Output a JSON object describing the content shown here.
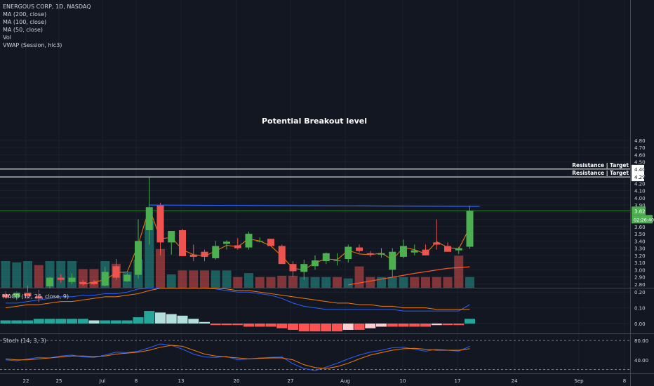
{
  "legend": {
    "symbol": "ENERGOUS CORP, 1D, NASDAQ",
    "indicators": [
      "MA (200, close)",
      "MA (100, close)",
      "MA (50, close)",
      "Vol",
      "VWAP (Session, hlc3)"
    ]
  },
  "annotations": {
    "breakout_label": "Potential Breakout level",
    "resistance_labels": [
      "Resistance | Target",
      "Resistance | Target"
    ],
    "last_price": "3.82",
    "countdown": "02:26:40"
  },
  "colors": {
    "background": "#131722",
    "up": "#4caf50",
    "down": "#ef5350",
    "blue": "#2962ff",
    "orange": "#f57c00",
    "grid": "#1e222d",
    "text": "#d1d4dc"
  },
  "chart_data": [
    {
      "type": "candlestick",
      "title": "ENERGOUS CORP, 1D, NASDAQ",
      "ylim": [
        2.7,
        4.85
      ],
      "y_ticks": [
        "4.80",
        "4.70",
        "4.60",
        "4.50",
        "4.40",
        "4.30",
        "4.20",
        "4.10",
        "4.00",
        "3.90",
        "3.80",
        "3.70",
        "3.60",
        "3.50",
        "3.40",
        "3.30",
        "3.20",
        "3.10",
        "3.00",
        "2.90",
        "2.80"
      ],
      "x_ticks": [
        "22",
        "25",
        "Jul",
        "8",
        "13",
        "20",
        "27",
        "Aug",
        "10",
        "17",
        "24",
        "Sep",
        "8"
      ],
      "candles": [
        {
          "o": 2.66,
          "h": 2.7,
          "l": 2.6,
          "c": 2.62
        },
        {
          "o": 2.62,
          "h": 2.7,
          "l": 2.58,
          "c": 2.68
        },
        {
          "o": 2.68,
          "h": 2.78,
          "l": 2.6,
          "c": 2.63
        },
        {
          "o": 2.63,
          "h": 2.72,
          "l": 2.55,
          "c": 2.6
        },
        {
          "o": 2.77,
          "h": 2.9,
          "l": 2.74,
          "c": 2.89
        },
        {
          "o": 2.89,
          "h": 2.94,
          "l": 2.82,
          "c": 2.86
        },
        {
          "o": 2.83,
          "h": 2.95,
          "l": 2.8,
          "c": 2.89
        },
        {
          "o": 2.83,
          "h": 2.86,
          "l": 2.78,
          "c": 2.8
        },
        {
          "o": 2.83,
          "h": 2.86,
          "l": 2.79,
          "c": 2.8
        },
        {
          "o": 2.78,
          "h": 3.04,
          "l": 2.77,
          "c": 2.97
        },
        {
          "o": 3.05,
          "h": 3.15,
          "l": 2.86,
          "c": 2.89
        },
        {
          "o": 2.84,
          "h": 2.95,
          "l": 2.83,
          "c": 2.93
        },
        {
          "o": 2.93,
          "h": 3.7,
          "l": 2.88,
          "c": 3.4
        },
        {
          "o": 3.55,
          "h": 4.28,
          "l": 3.35,
          "c": 3.87
        },
        {
          "o": 3.9,
          "h": 3.93,
          "l": 3.2,
          "c": 3.38
        },
        {
          "o": 3.38,
          "h": 3.54,
          "l": 3.21,
          "c": 3.54
        },
        {
          "o": 3.55,
          "h": 3.57,
          "l": 3.2,
          "c": 3.19
        },
        {
          "o": 3.21,
          "h": 3.35,
          "l": 3.12,
          "c": 3.18
        },
        {
          "o": 3.25,
          "h": 3.28,
          "l": 3.12,
          "c": 3.18
        },
        {
          "o": 3.16,
          "h": 3.4,
          "l": 3.14,
          "c": 3.33
        },
        {
          "o": 3.36,
          "h": 3.41,
          "l": 3.28,
          "c": 3.39
        },
        {
          "o": 3.34,
          "h": 3.44,
          "l": 3.28,
          "c": 3.3
        },
        {
          "o": 3.31,
          "h": 3.53,
          "l": 3.28,
          "c": 3.5
        },
        {
          "o": 3.4,
          "h": 3.45,
          "l": 3.38,
          "c": 3.4
        },
        {
          "o": 3.43,
          "h": 3.42,
          "l": 3.33,
          "c": 3.33
        },
        {
          "o": 3.33,
          "h": 3.35,
          "l": 3.08,
          "c": 3.08
        },
        {
          "o": 3.08,
          "h": 3.12,
          "l": 2.9,
          "c": 2.98
        },
        {
          "o": 2.97,
          "h": 3.14,
          "l": 2.86,
          "c": 3.08
        },
        {
          "o": 3.05,
          "h": 3.2,
          "l": 3.0,
          "c": 3.13
        },
        {
          "o": 3.12,
          "h": 3.24,
          "l": 3.08,
          "c": 3.23
        },
        {
          "o": 3.12,
          "h": 3.23,
          "l": 3.06,
          "c": 3.13
        },
        {
          "o": 3.15,
          "h": 3.35,
          "l": 3.1,
          "c": 3.32
        },
        {
          "o": 3.31,
          "h": 3.35,
          "l": 3.24,
          "c": 3.26
        },
        {
          "o": 3.23,
          "h": 3.26,
          "l": 3.18,
          "c": 3.21
        },
        {
          "o": 3.21,
          "h": 3.3,
          "l": 3.17,
          "c": 3.23
        },
        {
          "o": 3.0,
          "h": 3.3,
          "l": 2.9,
          "c": 3.25
        },
        {
          "o": 3.18,
          "h": 3.42,
          "l": 3.16,
          "c": 3.33
        },
        {
          "o": 3.24,
          "h": 3.35,
          "l": 3.2,
          "c": 3.27
        },
        {
          "o": 3.28,
          "h": 3.35,
          "l": 3.2,
          "c": 3.2
        },
        {
          "o": 3.38,
          "h": 3.7,
          "l": 3.28,
          "c": 3.35
        },
        {
          "o": 3.33,
          "h": 3.38,
          "l": 3.27,
          "c": 3.25
        },
        {
          "o": 3.27,
          "h": 3.32,
          "l": 3.22,
          "c": 3.3
        },
        {
          "o": 3.32,
          "h": 3.89,
          "l": 3.29,
          "c": 3.82
        }
      ],
      "vwap_line": [
        [
          7,
          2.8
        ],
        [
          8,
          2.83
        ],
        [
          9,
          2.86
        ],
        [
          10,
          2.96
        ],
        [
          11,
          2.97
        ],
        [
          12,
          3.35
        ],
        [
          13,
          3.86
        ],
        [
          14,
          3.43
        ],
        [
          15,
          3.45
        ],
        [
          16,
          3.28
        ],
        [
          17,
          3.21
        ],
        [
          18,
          3.19
        ],
        [
          19,
          3.26
        ],
        [
          20,
          3.34
        ],
        [
          21,
          3.32
        ],
        [
          22,
          3.43
        ],
        [
          23,
          3.4
        ],
        [
          24,
          3.33
        ],
        [
          25,
          3.19
        ],
        [
          26,
          3.02
        ],
        [
          27,
          3.0
        ],
        [
          28,
          3.1
        ],
        [
          29,
          3.15
        ],
        [
          30,
          3.14
        ],
        [
          31,
          3.27
        ],
        [
          32,
          3.22
        ],
        [
          33,
          3.21
        ],
        [
          34,
          3.23
        ],
        [
          35,
          3.14
        ],
        [
          36,
          3.31
        ],
        [
          37,
          3.28
        ],
        [
          38,
          3.22
        ],
        [
          39,
          3.39
        ],
        [
          40,
          3.31
        ],
        [
          41,
          3.29
        ],
        [
          42,
          3.59
        ]
      ],
      "ma_line": [
        [
          31,
          2.79
        ],
        [
          34,
          2.87
        ],
        [
          37,
          2.95
        ],
        [
          40,
          3.02
        ],
        [
          42,
          3.04
        ]
      ],
      "breakout_level": {
        "from": 13,
        "to": 42,
        "y_start": 3.9,
        "y_end": 3.88
      },
      "horizontal_levels": [
        4.4,
        4.29
      ],
      "last_price_line": 3.82
    },
    {
      "type": "bar",
      "title": "Vol",
      "values": [
        20,
        19,
        20,
        17,
        20,
        20,
        20,
        14,
        14,
        20,
        18,
        12,
        21,
        50,
        29,
        10,
        13,
        13,
        13,
        13,
        13,
        8,
        11,
        8,
        8,
        9,
        9,
        8,
        8,
        8,
        8,
        7,
        16,
        8,
        8,
        8,
        8,
        8,
        8,
        8,
        8,
        24,
        8
      ],
      "directions": [
        "up",
        "up",
        "up",
        "down",
        "up",
        "up",
        "up",
        "down",
        "down",
        "up",
        "down",
        "up",
        "up",
        "up",
        "down",
        "up",
        "down",
        "down",
        "down",
        "up",
        "up",
        "down",
        "up",
        "down",
        "down",
        "down",
        "down",
        "up",
        "up",
        "up",
        "down",
        "up",
        "down",
        "down",
        "up",
        "up",
        "up",
        "down",
        "down",
        "down",
        "down",
        "down",
        "up"
      ]
    },
    {
      "type": "bar",
      "title": "MACD (12, 26, close, 9)",
      "ylim": [
        -0.06,
        0.24
      ],
      "y_ticks": [
        "0.20",
        "0.10",
        "0.00"
      ],
      "histogram": [
        0.02,
        0.02,
        0.02,
        0.03,
        0.03,
        0.03,
        0.03,
        0.03,
        0.02,
        0.02,
        0.02,
        0.02,
        0.04,
        0.08,
        0.07,
        0.06,
        0.05,
        0.03,
        0.01,
        -0.01,
        -0.01,
        -0.01,
        -0.02,
        -0.02,
        -0.02,
        -0.03,
        -0.04,
        -0.05,
        -0.05,
        -0.05,
        -0.05,
        -0.04,
        -0.04,
        -0.03,
        -0.02,
        -0.02,
        -0.02,
        -0.02,
        -0.02,
        -0.01,
        -0.01,
        -0.01,
        0.03
      ],
      "macd_line": [
        0.13,
        0.13,
        0.14,
        0.15,
        0.16,
        0.17,
        0.17,
        0.18,
        0.18,
        0.19,
        0.19,
        0.2,
        0.22,
        0.28,
        0.29,
        0.28,
        0.27,
        0.25,
        0.24,
        0.22,
        0.21,
        0.2,
        0.2,
        0.19,
        0.18,
        0.16,
        0.13,
        0.11,
        0.1,
        0.09,
        0.09,
        0.09,
        0.09,
        0.09,
        0.09,
        0.09,
        0.08,
        0.08,
        0.08,
        0.08,
        0.08,
        0.08,
        0.12
      ],
      "signal_line": [
        0.1,
        0.11,
        0.12,
        0.12,
        0.13,
        0.14,
        0.14,
        0.15,
        0.16,
        0.17,
        0.17,
        0.18,
        0.19,
        0.21,
        0.23,
        0.24,
        0.24,
        0.24,
        0.23,
        0.23,
        0.22,
        0.21,
        0.21,
        0.2,
        0.19,
        0.18,
        0.17,
        0.16,
        0.15,
        0.14,
        0.13,
        0.13,
        0.12,
        0.12,
        0.11,
        0.11,
        0.1,
        0.1,
        0.1,
        0.09,
        0.09,
        0.09,
        0.09
      ]
    },
    {
      "type": "line",
      "title": "Stoch (14, 3, 3)",
      "ylim": [
        15,
        95
      ],
      "y_ticks": [
        "80.00",
        "40.00"
      ],
      "k_line": [
        40,
        38,
        42,
        45,
        44,
        48,
        50,
        46,
        45,
        50,
        56,
        55,
        58,
        65,
        73,
        70,
        62,
        52,
        46,
        45,
        47,
        40,
        42,
        44,
        45,
        46,
        32,
        22,
        18,
        25,
        33,
        42,
        50,
        56,
        60,
        65,
        66,
        62,
        58,
        62,
        60,
        58,
        68
      ],
      "d_line": [
        42,
        40,
        40,
        42,
        44,
        46,
        48,
        48,
        47,
        48,
        52,
        54,
        56,
        60,
        66,
        70,
        68,
        60,
        52,
        48,
        46,
        44,
        42,
        43,
        44,
        44,
        40,
        30,
        24,
        22,
        26,
        33,
        42,
        50,
        55,
        60,
        63,
        64,
        62,
        60,
        60,
        60,
        63
      ]
    }
  ]
}
